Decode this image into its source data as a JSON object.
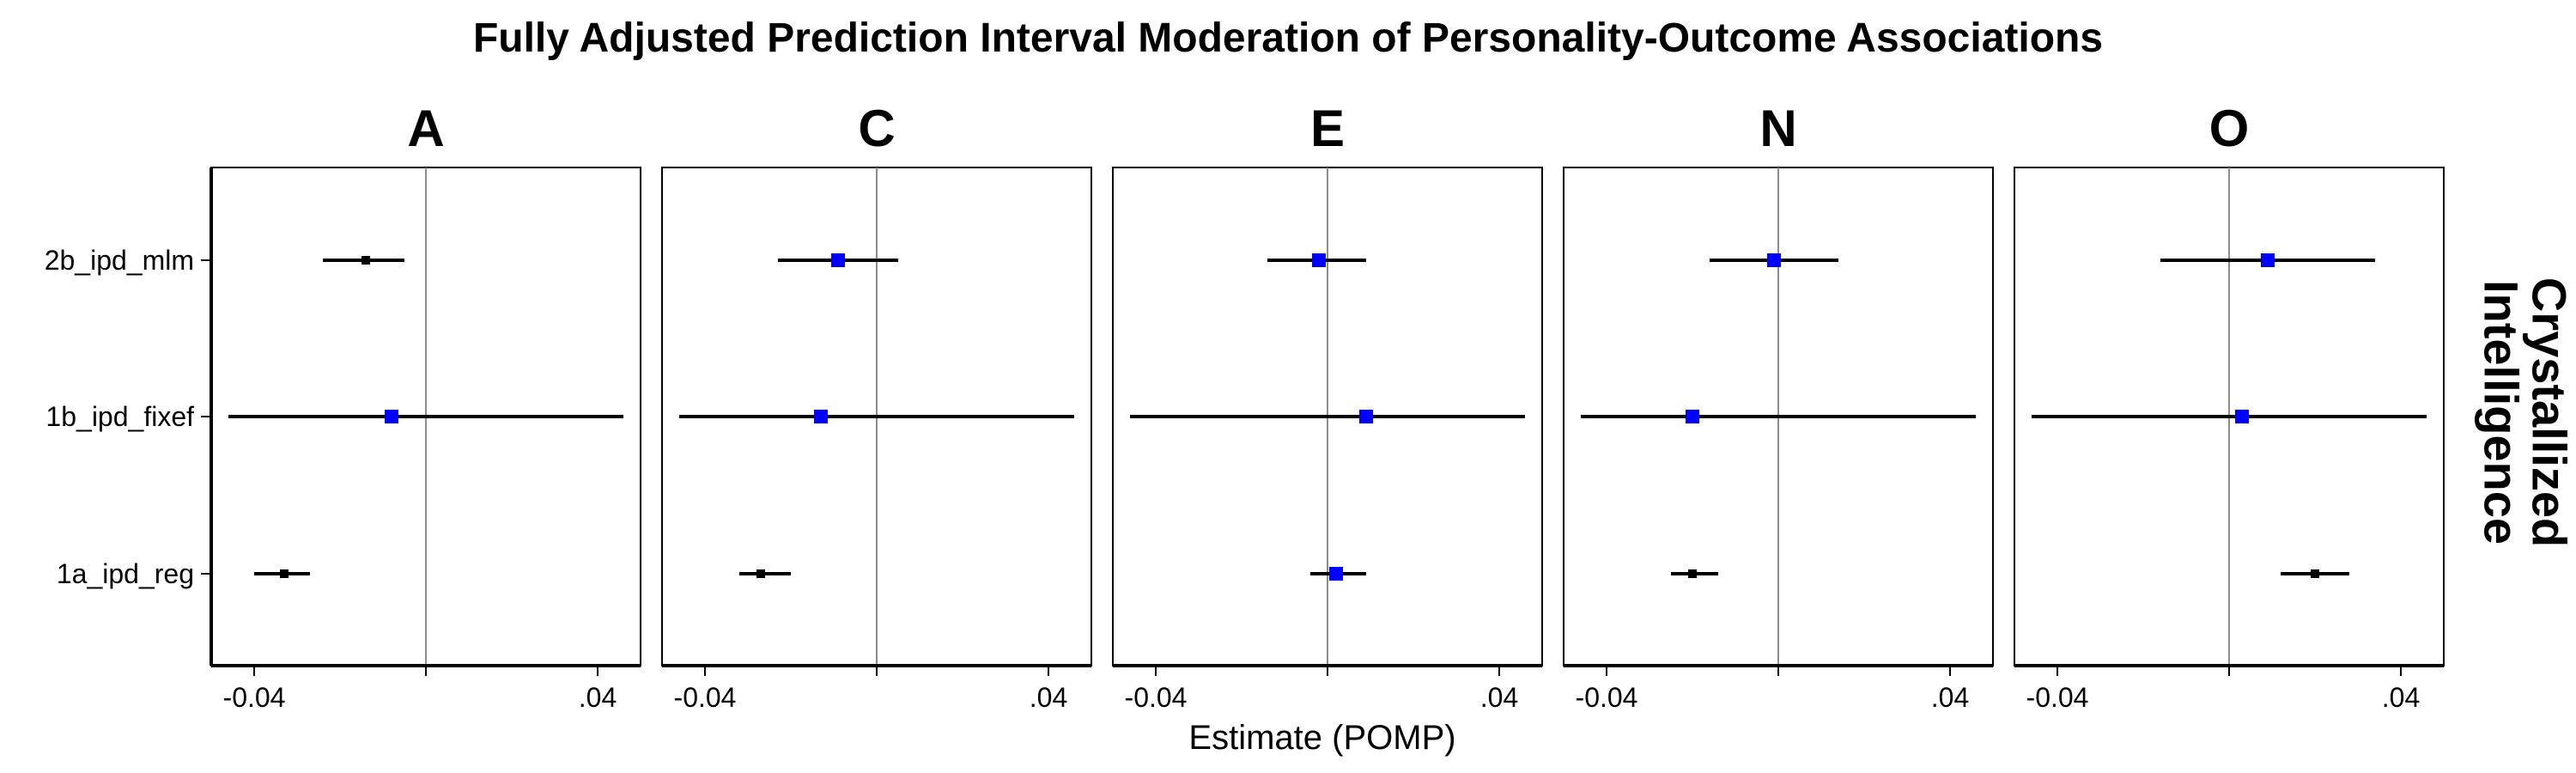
{
  "chart_data": {
    "type": "forest",
    "title": "Fully Adjusted Prediction Interval Moderation of Personality-Outcome Associations",
    "xlabel": "Estimate (POMP)",
    "ylabel": "",
    "strip_label": "Crystallized Intelligence",
    "categories": [
      "2b_ipd_mlm",
      "1b_ipd_fixef",
      "1a_ipd_reg"
    ],
    "xlim": [
      -0.05,
      0.05
    ],
    "x_ticks": [
      {
        "value": -0.04,
        "label": "-0.04"
      },
      {
        "value": 0,
        "label": ""
      },
      {
        "value": 0.04,
        "label": ".04"
      }
    ],
    "reference_line": 0,
    "colors": {
      "significant": "#000000",
      "non_significant": "#0000ff",
      "ref_line": "#8c8c8c"
    },
    "facets": [
      {
        "name": "A",
        "points": [
          {
            "model": "2b_ipd_mlm",
            "estimate": -0.014,
            "lower": -0.024,
            "upper": -0.005,
            "color": "#000000"
          },
          {
            "model": "1b_ipd_fixef",
            "estimate": -0.008,
            "lower": -0.046,
            "upper": 0.046,
            "color": "#0000ff"
          },
          {
            "model": "1a_ipd_reg",
            "estimate": -0.033,
            "lower": -0.04,
            "upper": -0.027,
            "color": "#000000"
          }
        ]
      },
      {
        "name": "C",
        "points": [
          {
            "model": "2b_ipd_mlm",
            "estimate": -0.009,
            "lower": -0.023,
            "upper": 0.005,
            "color": "#0000ff"
          },
          {
            "model": "1b_ipd_fixef",
            "estimate": -0.013,
            "lower": -0.046,
            "upper": 0.046,
            "color": "#0000ff"
          },
          {
            "model": "1a_ipd_reg",
            "estimate": -0.027,
            "lower": -0.032,
            "upper": -0.02,
            "color": "#000000"
          }
        ]
      },
      {
        "name": "E",
        "points": [
          {
            "model": "2b_ipd_mlm",
            "estimate": -0.002,
            "lower": -0.014,
            "upper": 0.009,
            "color": "#0000ff"
          },
          {
            "model": "1b_ipd_fixef",
            "estimate": 0.009,
            "lower": -0.046,
            "upper": 0.046,
            "color": "#0000ff"
          },
          {
            "model": "1a_ipd_reg",
            "estimate": 0.002,
            "lower": -0.004,
            "upper": 0.009,
            "color": "#0000ff"
          }
        ]
      },
      {
        "name": "N",
        "points": [
          {
            "model": "2b_ipd_mlm",
            "estimate": -0.001,
            "lower": -0.016,
            "upper": 0.014,
            "color": "#0000ff"
          },
          {
            "model": "1b_ipd_fixef",
            "estimate": -0.02,
            "lower": -0.046,
            "upper": 0.046,
            "color": "#0000ff"
          },
          {
            "model": "1a_ipd_reg",
            "estimate": -0.02,
            "lower": -0.025,
            "upper": -0.014,
            "color": "#000000"
          }
        ]
      },
      {
        "name": "O",
        "points": [
          {
            "model": "2b_ipd_mlm",
            "estimate": 0.009,
            "lower": -0.016,
            "upper": 0.034,
            "color": "#0000ff"
          },
          {
            "model": "1b_ipd_fixef",
            "estimate": 0.003,
            "lower": -0.046,
            "upper": 0.046,
            "color": "#0000ff"
          },
          {
            "model": "1a_ipd_reg",
            "estimate": 0.02,
            "lower": 0.012,
            "upper": 0.028,
            "color": "#000000"
          }
        ]
      }
    ]
  }
}
